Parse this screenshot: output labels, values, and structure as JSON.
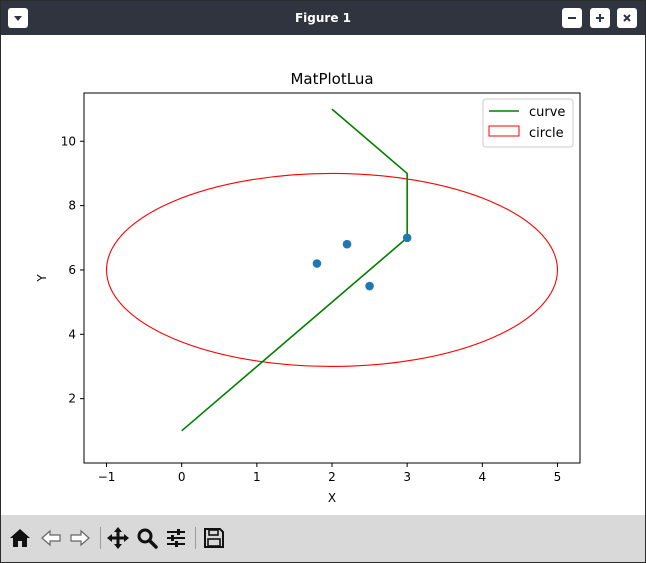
{
  "window": {
    "title": "Figure 1",
    "menu_icon": "chevron-down-icon",
    "controls": [
      "minimize-icon",
      "maximize-icon",
      "close-icon"
    ]
  },
  "toolbar": {
    "tools": [
      "home-icon",
      "back-arrow-icon",
      "forward-arrow-icon",
      "pan-move-icon",
      "zoom-magnifier-icon",
      "configure-subplots-icon",
      "save-floppy-icon"
    ]
  },
  "colors": {
    "titlebar": "#2f343f",
    "toolbar": "#d9d9d9",
    "curve": "#008000",
    "circle": "#ff0000",
    "points": "#1f77b4"
  },
  "chart_data": {
    "type": "line",
    "title": "MatPlotLua",
    "xlabel": "X",
    "ylabel": "Y",
    "xlim": [
      -1.3,
      5.3
    ],
    "ylim": [
      0.0,
      11.5
    ],
    "xticks": [
      -1,
      0,
      1,
      2,
      3,
      4,
      5
    ],
    "yticks": [
      2,
      4,
      6,
      8,
      10
    ],
    "xtick_labels": [
      "−1",
      "0",
      "1",
      "2",
      "3",
      "4",
      "5"
    ],
    "ytick_labels": [
      "2",
      "4",
      "6",
      "8",
      "10"
    ],
    "grid": false,
    "legend": {
      "placement": "top-right",
      "entries": [
        "curve",
        "circle"
      ]
    },
    "series": [
      {
        "name": "curve",
        "type": "line",
        "x": [
          0,
          3,
          3,
          2
        ],
        "y": [
          1,
          7,
          9,
          11
        ],
        "color": "#008000"
      },
      {
        "type": "scatter",
        "x": [
          1.8,
          2.2,
          2.5,
          3.0
        ],
        "y": [
          6.2,
          6.8,
          5.5,
          7.0
        ],
        "color": "#1f77b4"
      }
    ],
    "shapes": [
      {
        "name": "circle",
        "type": "ellipse",
        "center": [
          2,
          6
        ],
        "rx": 3,
        "ry": 3,
        "edgecolor": "#ff0000"
      }
    ]
  }
}
